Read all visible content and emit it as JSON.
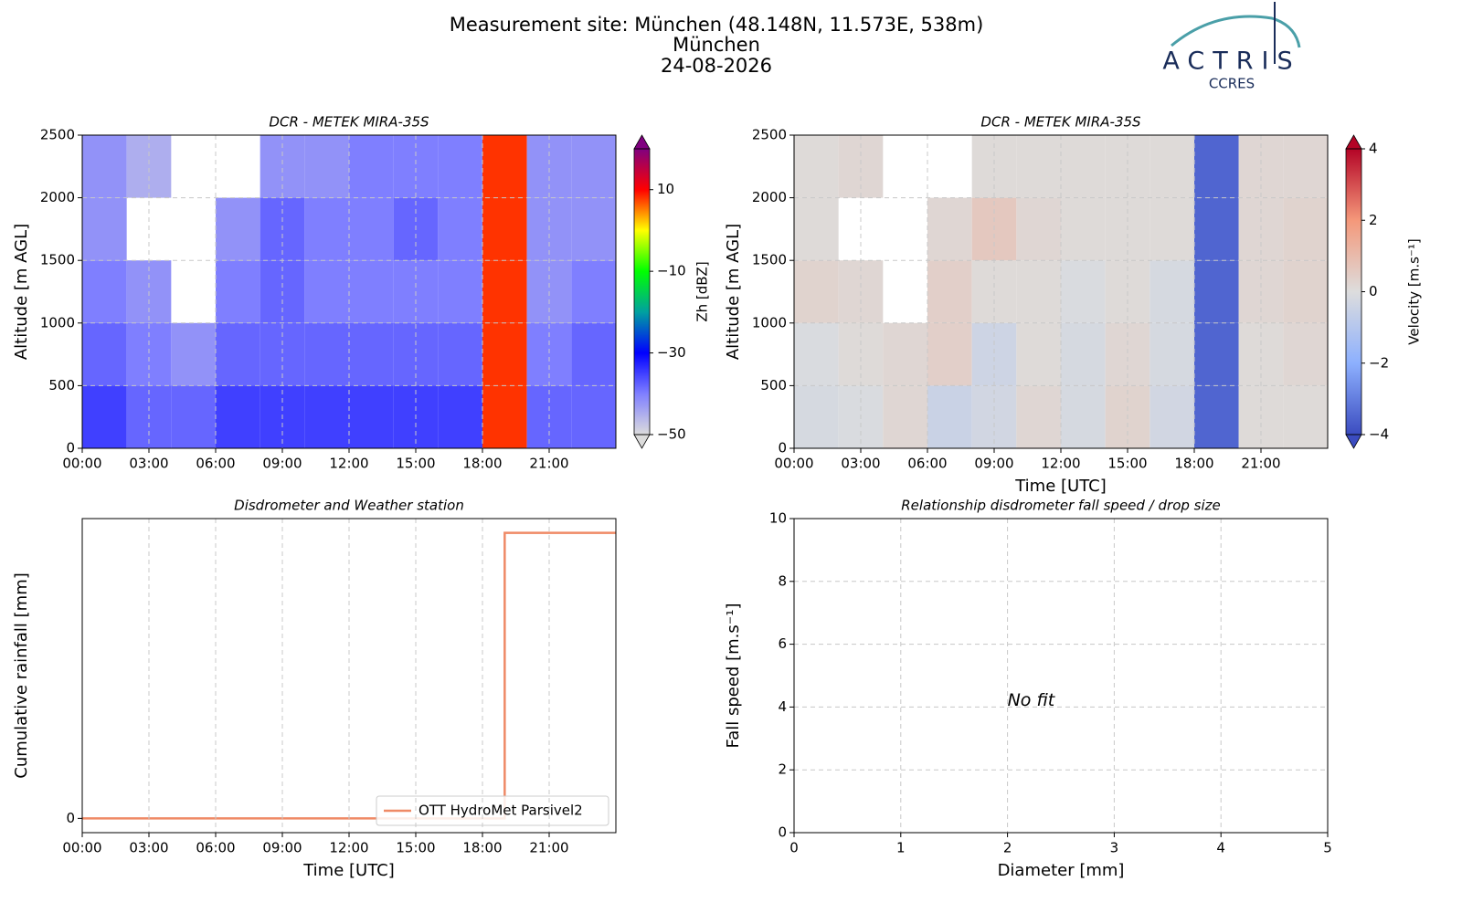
{
  "header": {
    "title_lines": [
      "Measurement site: München (48.148N, 11.573E, 538m)",
      "München",
      "24-08-2026"
    ]
  },
  "logo": {
    "name": "ACTRIS",
    "subtitle": "CCRES"
  },
  "chart_data": [
    {
      "type": "heatmap",
      "title": "DCR - METEK MIRA-35S",
      "ylabel": "Altitude [m AGL]",
      "xlim": [
        0,
        24
      ],
      "xticks": [
        {
          "value": 0,
          "label": "00:00"
        },
        {
          "value": 3,
          "label": "03:00"
        },
        {
          "value": 6,
          "label": "06:00"
        },
        {
          "value": 9,
          "label": "09:00"
        },
        {
          "value": 12,
          "label": "12:00"
        },
        {
          "value": 15,
          "label": "15:00"
        },
        {
          "value": 18,
          "label": "18:00"
        },
        {
          "value": 21,
          "label": "21:00"
        }
      ],
      "ylim": [
        0,
        2500
      ],
      "yticks": [
        0,
        500,
        1000,
        1500,
        2000,
        2500
      ],
      "grid": true,
      "xbins": [
        0,
        2,
        4,
        6,
        8,
        10,
        12,
        14,
        16,
        18,
        20,
        22,
        24
      ],
      "ybins": [
        0,
        500,
        1000,
        1500,
        2000,
        2500
      ],
      "values": [
        [
          -35,
          -38,
          -38,
          -35,
          -35,
          -35,
          -35,
          -35,
          -35,
          8,
          -38,
          -38
        ],
        [
          -38,
          -40,
          -42,
          -38,
          -38,
          -38,
          -38,
          -38,
          -38,
          8,
          -40,
          -38
        ],
        [
          -40,
          -42,
          null,
          -40,
          -38,
          -40,
          -40,
          -40,
          -40,
          8,
          -42,
          -40
        ],
        [
          -42,
          null,
          null,
          -42,
          -38,
          -40,
          -40,
          -38,
          -40,
          8,
          -42,
          -42
        ],
        [
          -42,
          -45,
          null,
          null,
          -42,
          -42,
          -40,
          -40,
          -40,
          8,
          -42,
          -42
        ]
      ],
      "colorbar": {
        "label": "Zh [dBZ]",
        "zlim": [
          -50,
          20
        ],
        "ticks": [
          10,
          {
            "value": -10,
            "label": "−10"
          },
          {
            "value": -30,
            "label": "−30"
          },
          {
            "value": -50,
            "label": "−50"
          }
        ],
        "colors": [
          "#dcdcdc",
          "#7f7fff",
          "#0000ff",
          "#00a0a0",
          "#00ff00",
          "#ffff00",
          "#ff0000",
          "#800080"
        ]
      }
    },
    {
      "type": "heatmap",
      "title": "DCR - METEK MIRA-35S",
      "ylabel": "Altitude [m AGL]",
      "xlabel": "Time [UTC]",
      "xlim": [
        0,
        24
      ],
      "xticks": [
        {
          "value": 0,
          "label": "00:00"
        },
        {
          "value": 3,
          "label": "03:00"
        },
        {
          "value": 6,
          "label": "06:00"
        },
        {
          "value": 9,
          "label": "09:00"
        },
        {
          "value": 12,
          "label": "12:00"
        },
        {
          "value": 15,
          "label": "15:00"
        },
        {
          "value": 18,
          "label": "18:00"
        },
        {
          "value": 21,
          "label": "21:00"
        }
      ],
      "ylim": [
        0,
        2500
      ],
      "yticks": [
        0,
        500,
        1000,
        1500,
        2000,
        2500
      ],
      "grid": true,
      "xbins": [
        0,
        2,
        4,
        6,
        8,
        10,
        12,
        14,
        16,
        18,
        20,
        22,
        24
      ],
      "ybins": [
        0,
        500,
        1000,
        1500,
        2000,
        2500
      ],
      "values": [
        [
          -0.2,
          -0.1,
          0.2,
          -0.5,
          -0.3,
          0.2,
          -0.2,
          0.3,
          -0.3,
          -3.5,
          0.1,
          0.1
        ],
        [
          -0.1,
          0.1,
          0.2,
          0.4,
          -0.4,
          0.1,
          -0.2,
          0.2,
          -0.2,
          -3.5,
          0.1,
          0.2
        ],
        [
          0.3,
          0.2,
          null,
          0.4,
          0.1,
          0.1,
          -0.1,
          0.1,
          -0.2,
          -3.5,
          0.2,
          0.3
        ],
        [
          0.1,
          null,
          null,
          0.2,
          0.6,
          0.2,
          0.1,
          0.1,
          0.1,
          -3.5,
          0.2,
          0.3
        ],
        [
          0.1,
          0.2,
          null,
          null,
          0.1,
          0.1,
          0.1,
          0.1,
          0.1,
          -3.5,
          0.2,
          0.2
        ]
      ],
      "colorbar": {
        "label": "Velocity [m.s⁻¹]",
        "zlim": [
          -4,
          4
        ],
        "ticks": [
          4,
          2,
          0,
          {
            "value": -2,
            "label": "−2"
          },
          {
            "value": -4,
            "label": "−4"
          }
        ],
        "colors": [
          "#3b4cc0",
          "#8db0fe",
          "#dddddd",
          "#f4987a",
          "#b40426"
        ]
      }
    },
    {
      "type": "line",
      "title": "Disdrometer and Weather station",
      "xlabel": "Time [UTC]",
      "ylabel": "Cumulative rainfall [mm]",
      "x": [
        0,
        19,
        19,
        24
      ],
      "series": [
        {
          "name": "OTT HydroMet Parsivel2",
          "color": "#ef8a66",
          "values": [
            0,
            0,
            1,
            1
          ]
        }
      ],
      "xlim": [
        0,
        24
      ],
      "xticks": [
        {
          "value": 0,
          "label": "00:00"
        },
        {
          "value": 3,
          "label": "03:00"
        },
        {
          "value": 6,
          "label": "06:00"
        },
        {
          "value": 9,
          "label": "09:00"
        },
        {
          "value": 12,
          "label": "12:00"
        },
        {
          "value": 15,
          "label": "15:00"
        },
        {
          "value": 18,
          "label": "18:00"
        },
        {
          "value": 21,
          "label": "21:00"
        }
      ],
      "ylim": [
        -0.05,
        1.05
      ],
      "yticks": [
        0
      ],
      "grid": "x",
      "legend": "lower right"
    },
    {
      "type": "scatter",
      "title": "Relationship disdrometer fall speed / drop size",
      "xlabel": "Diameter [mm]",
      "ylabel": "Fall speed [m.s⁻¹]",
      "xlim": [
        0,
        5
      ],
      "xticks": [
        0,
        1,
        2,
        3,
        4,
        5
      ],
      "ylim": [
        0,
        10
      ],
      "yticks": [
        0,
        2,
        4,
        6,
        8,
        10
      ],
      "grid": true,
      "annotation": "No fit"
    }
  ]
}
